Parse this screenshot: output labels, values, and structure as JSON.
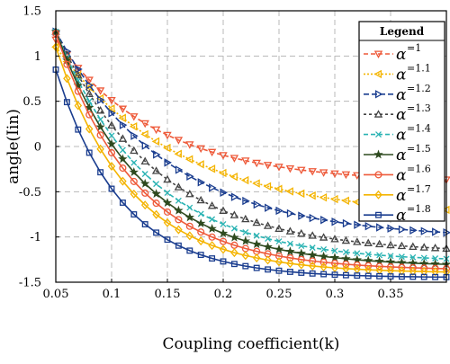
{
  "chart_data": {
    "type": "line",
    "title": "",
    "xlabel": "Coupling coefficient(k)",
    "ylabel": "angle(Iin)",
    "xlim": [
      0.05,
      0.4
    ],
    "ylim": [
      -1.5,
      1.5
    ],
    "xticks": [
      0.05,
      0.1,
      0.15,
      0.2,
      0.25,
      0.3,
      0.35
    ],
    "xtick_labels": [
      "0.05",
      "0.1",
      "0.15",
      "0.2",
      "0.25",
      "0.3",
      "0.35"
    ],
    "yticks": [
      -1.5,
      -1,
      -0.5,
      0,
      0.5,
      1,
      1.5
    ],
    "ytick_labels": [
      "-1.5",
      "-1",
      "-0.5",
      "0",
      "0.5",
      "1",
      "1.5"
    ],
    "grid": true,
    "legend": {
      "title": "Legend",
      "position": "top-right",
      "alpha_symbol": "α"
    },
    "series": [
      {
        "name": "=1",
        "alpha": "1",
        "color": "#ee5a3a",
        "marker": "triangle-down",
        "dash": "5,3",
        "start": 1.18,
        "end": -0.4,
        "rate": 11
      },
      {
        "name": "=1.1",
        "alpha": "1.1",
        "color": "#f4b400",
        "marker": "triangle-left",
        "dash": "2,2",
        "start": 1.1,
        "end": -0.78,
        "rate": 9
      },
      {
        "name": "=1.2",
        "alpha": "1.2",
        "color": "#1a3d8f",
        "marker": "triangle-right",
        "dash": "6,3",
        "start": 1.27,
        "end": -1.02,
        "rate": 10
      },
      {
        "name": "=1.3",
        "alpha": "1.3",
        "color": "#444444",
        "marker": "triangle-up",
        "dash": "3,3",
        "start": 1.27,
        "end": -1.18,
        "rate": 11
      },
      {
        "name": "=1.4",
        "alpha": "1.4",
        "color": "#2ab3b3",
        "marker": "x",
        "dash": "5,3",
        "start": 1.27,
        "end": -1.28,
        "rate": 12
      },
      {
        "name": "=1.5",
        "alpha": "1.5",
        "color": "#2e4a1f",
        "marker": "star",
        "dash": "",
        "start": 1.27,
        "end": -1.33,
        "rate": 13
      },
      {
        "name": "=1.6",
        "alpha": "1.6",
        "color": "#ee5a3a",
        "marker": "circle",
        "dash": "",
        "start": 1.25,
        "end": -1.37,
        "rate": 14
      },
      {
        "name": "=1.7",
        "alpha": "1.7",
        "color": "#f4b400",
        "marker": "diamond",
        "dash": "",
        "start": 1.1,
        "end": -1.4,
        "rate": 15
      },
      {
        "name": "=1.8",
        "alpha": "1.8",
        "color": "#1a3d8f",
        "marker": "square",
        "dash": "",
        "start": 0.85,
        "end": -1.45,
        "rate": 17
      }
    ],
    "x_start": 0.05,
    "x_end": 0.4,
    "x_step": 0.01
  }
}
